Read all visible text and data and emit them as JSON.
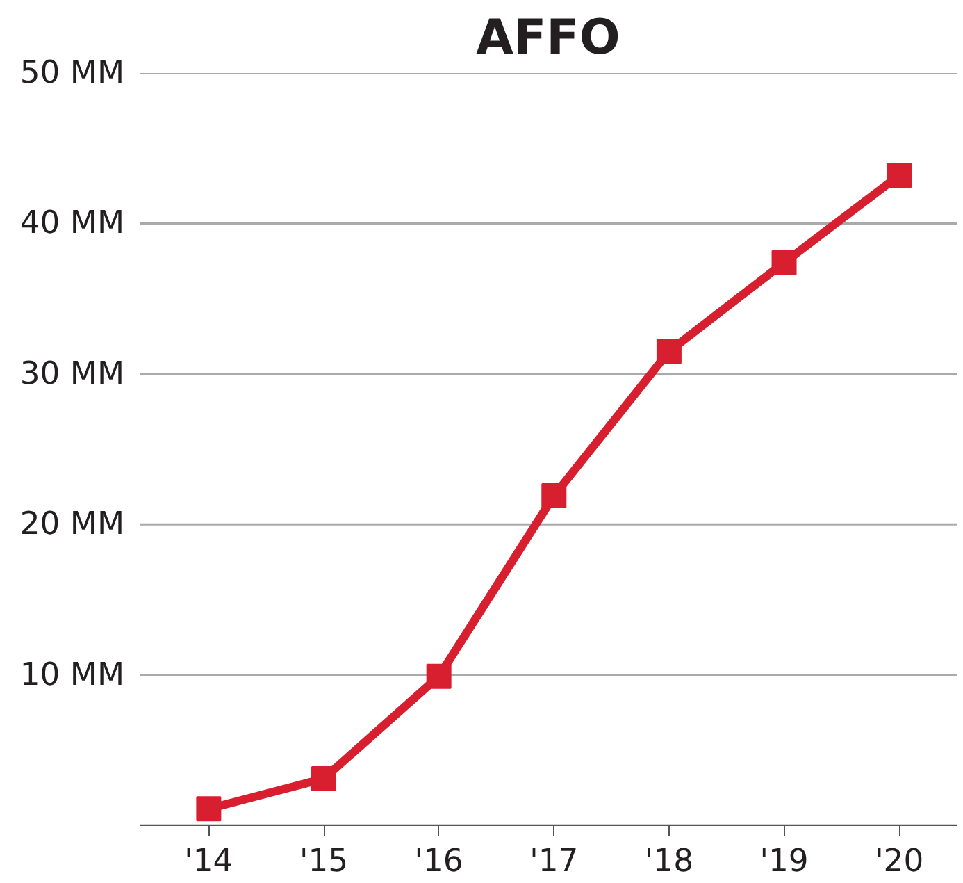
{
  "chart_data": {
    "type": "line",
    "title": "AFFO",
    "categories": [
      "'14",
      "'15",
      "'16",
      "'17",
      "'18",
      "'19",
      "'20"
    ],
    "series": [
      {
        "color": "#d71f2f",
        "values": [
          1.1,
          3.1,
          9.9,
          21.9,
          31.5,
          37.4,
          43.2
        ]
      }
    ],
    "ylim": [
      0,
      50
    ],
    "yticks": [
      {
        "value": 0,
        "label": null
      },
      {
        "value": 10,
        "label": "10 MM"
      },
      {
        "value": 20,
        "label": "20 MM"
      },
      {
        "value": 30,
        "label": "30 MM"
      },
      {
        "value": 40,
        "label": "40 MM"
      },
      {
        "value": 50,
        "label": "50 MM"
      }
    ],
    "grid": "y",
    "marker": "square",
    "line_style": "solid"
  }
}
